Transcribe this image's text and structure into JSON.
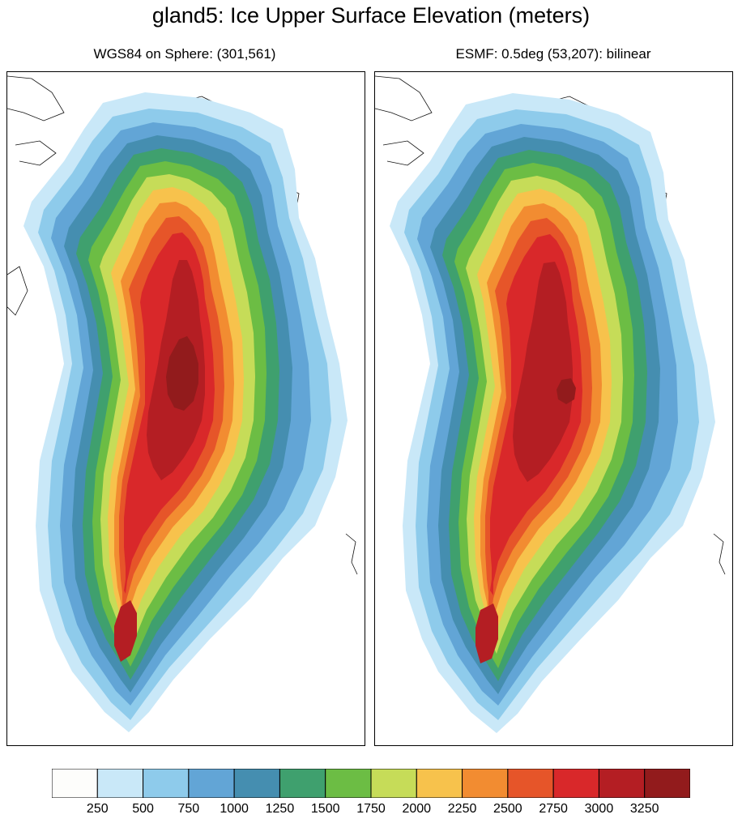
{
  "title": "gland5: Ice Upper Surface Elevation (meters)",
  "panels": [
    {
      "subtitle": "WGS84 on Sphere: (301,561)"
    },
    {
      "subtitle": "ESMF: 0.5deg (53,207): bilinear"
    }
  ],
  "colorbar": {
    "colors": [
      "#fdfdfb",
      "#c9e8f8",
      "#8ecbeb",
      "#62a5d6",
      "#458eb0",
      "#3fa06e",
      "#6cbd44",
      "#c6dc58",
      "#f7c24c",
      "#f28c31",
      "#e65529",
      "#d9282a",
      "#b41e23",
      "#921b1c"
    ],
    "labels": [
      "250",
      "500",
      "750",
      "1000",
      "1250",
      "1500",
      "1750",
      "2000",
      "2250",
      "2500",
      "2750",
      "3000",
      "3250"
    ]
  }
}
